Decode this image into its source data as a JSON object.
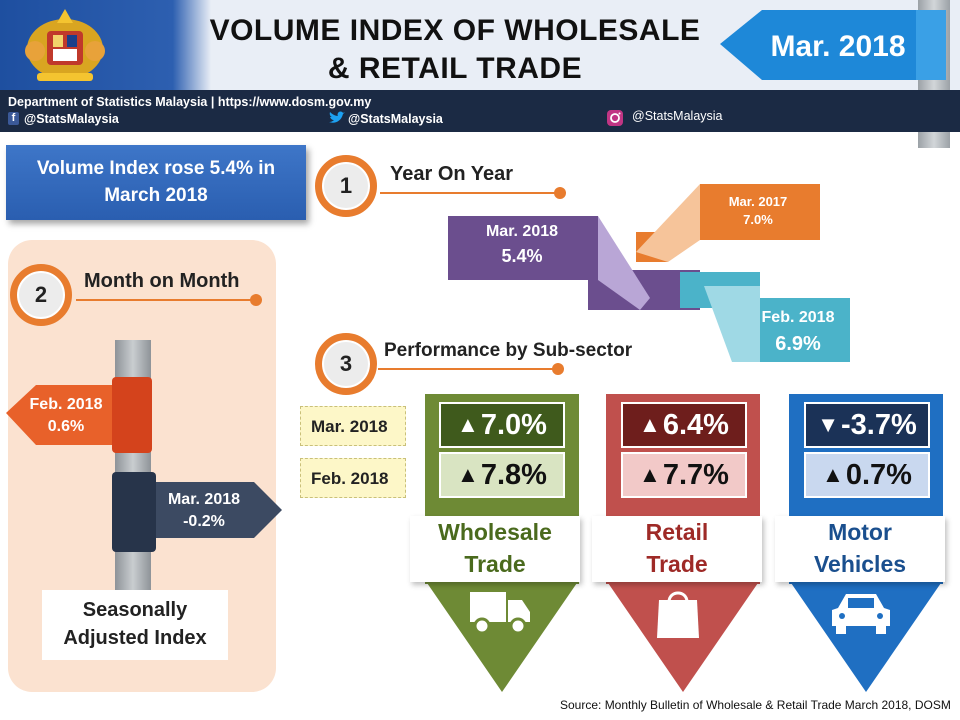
{
  "header": {
    "title_line1": "VOLUME INDEX OF WHOLESALE",
    "title_line2": "& RETAIL TRADE",
    "month": "Mar. 2018",
    "agency": "Department of Statistics Malaysia | https://www.dosm.gov.my",
    "facebook": "@StatsMalaysia",
    "twitter": "@StatsMalaysia",
    "instagram": "@StatsMalaysia"
  },
  "headline": {
    "line1": "Volume Index rose 5.4% in",
    "line2": "March 2018"
  },
  "yoy": {
    "number": "1",
    "title": "Year On Year",
    "current": {
      "label": "Mar. 2018",
      "value": "5.4%"
    },
    "last_year": {
      "label": "Mar. 2017",
      "value": "7.0%"
    },
    "previous": {
      "label": "Feb. 2018",
      "value": "6.9%"
    }
  },
  "mom": {
    "number": "2",
    "title": "Month on Month",
    "previous": {
      "label": "Feb. 2018",
      "value": "0.6%"
    },
    "current": {
      "label": "Mar. 2018",
      "value": "-0.2%"
    },
    "index_line1": "Seasonally",
    "index_line2": "Adjusted Index"
  },
  "subsector": {
    "number": "3",
    "title": "Performance by Sub-sector",
    "legend_current": "Mar. 2018",
    "legend_previous": "Feb. 2018",
    "sectors": [
      {
        "name1": "Wholesale",
        "name2": "Trade",
        "current": "7.0%",
        "previous": "7.8%",
        "current_dir": "up",
        "previous_dir": "up"
      },
      {
        "name1": "Retail",
        "name2": "Trade",
        "current": "6.4%",
        "previous": "7.7%",
        "current_dir": "up",
        "previous_dir": "up"
      },
      {
        "name1": "Motor",
        "name2": "Vehicles",
        "current": "-3.7%",
        "previous": "0.7%",
        "current_dir": "down",
        "previous_dir": "up"
      }
    ]
  },
  "source": "Source: Monthly Bulletin of Wholesale & Retail Trade March 2018, DOSM",
  "colors": {
    "navy": "#1b2a44",
    "orange": "#e87c2e",
    "purple": "#6b4e8e",
    "teal": "#4bb3c9",
    "wholesale": "#6e8a35",
    "retail": "#c0504d",
    "motor": "#1f6fc2"
  }
}
